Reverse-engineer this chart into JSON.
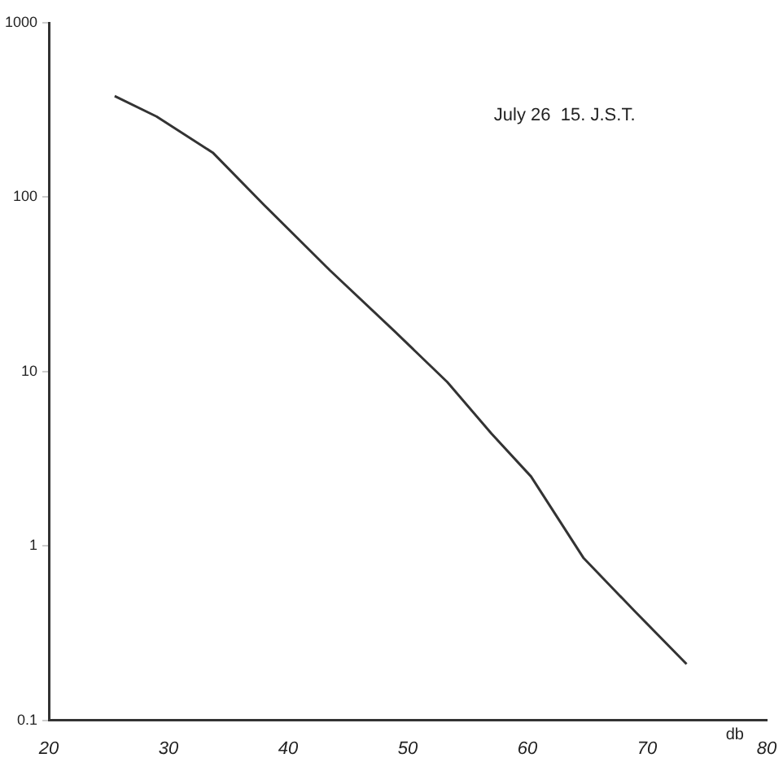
{
  "chart_data": {
    "type": "line",
    "xlabel": "db",
    "annotations": [
      "July 26  15. J.S.T."
    ],
    "x": [
      25.5,
      29,
      33.7,
      38,
      43.5,
      48.9,
      53.3,
      57,
      60.3,
      64.7,
      69,
      73.3
    ],
    "series": [
      {
        "color": "#333333",
        "values": [
          380,
          290,
          180,
          90,
          38,
          17,
          8.7,
          4.4,
          2.5,
          0.85,
          0.42,
          0.21
        ]
      }
    ],
    "xlim": [
      20,
      80
    ],
    "xticks": [
      20,
      30,
      40,
      50,
      60,
      70,
      80
    ],
    "ylim": [
      0.1,
      1000
    ],
    "yticks": [
      0.1,
      1,
      10,
      100,
      1000
    ],
    "log": "y",
    "grid": false,
    "legend": false,
    "marker": "none",
    "line_style": "solid"
  }
}
